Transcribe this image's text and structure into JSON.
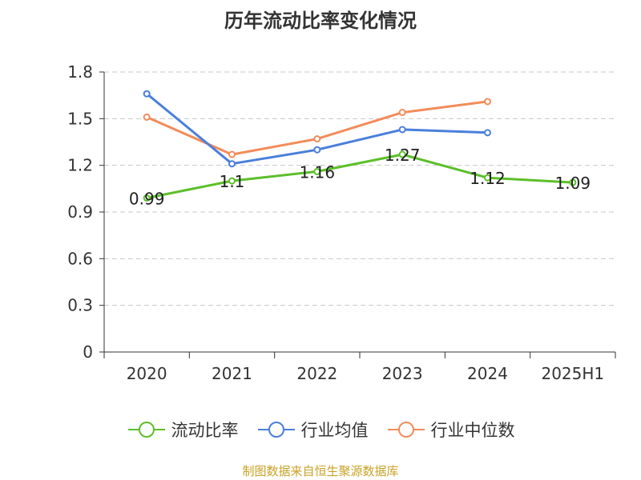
{
  "title": "历年流动比率变化情况",
  "source": "制图数据来自恒生聚源数据库",
  "colors": {
    "current_ratio": "#5cbf2a",
    "industry_avg": "#4a7fdb",
    "industry_median": "#f28c5a"
  },
  "chart_data": {
    "type": "line",
    "categories": [
      "2020",
      "2021",
      "2022",
      "2023",
      "2024",
      "2025H1"
    ],
    "ylim": [
      0,
      1.8
    ],
    "yticks": [
      "0",
      "0.3",
      "0.6",
      "0.9",
      "1.2",
      "1.5",
      "1.8"
    ],
    "grid": true,
    "legend_position": "bottom",
    "series": [
      {
        "name": "流动比率",
        "color": "#5cbf2a",
        "values": [
          0.99,
          1.1,
          1.16,
          1.27,
          1.12,
          1.09
        ],
        "labels": [
          "0.99",
          "1.1",
          "1.16",
          "1.27",
          "1.12",
          "1.09"
        ]
      },
      {
        "name": "行业均值",
        "color": "#4a7fdb",
        "values": [
          1.66,
          1.21,
          1.3,
          1.43,
          1.41,
          null
        ]
      },
      {
        "name": "行业中位数",
        "color": "#f28c5a",
        "values": [
          1.51,
          1.27,
          1.37,
          1.54,
          1.61,
          null
        ]
      }
    ]
  }
}
